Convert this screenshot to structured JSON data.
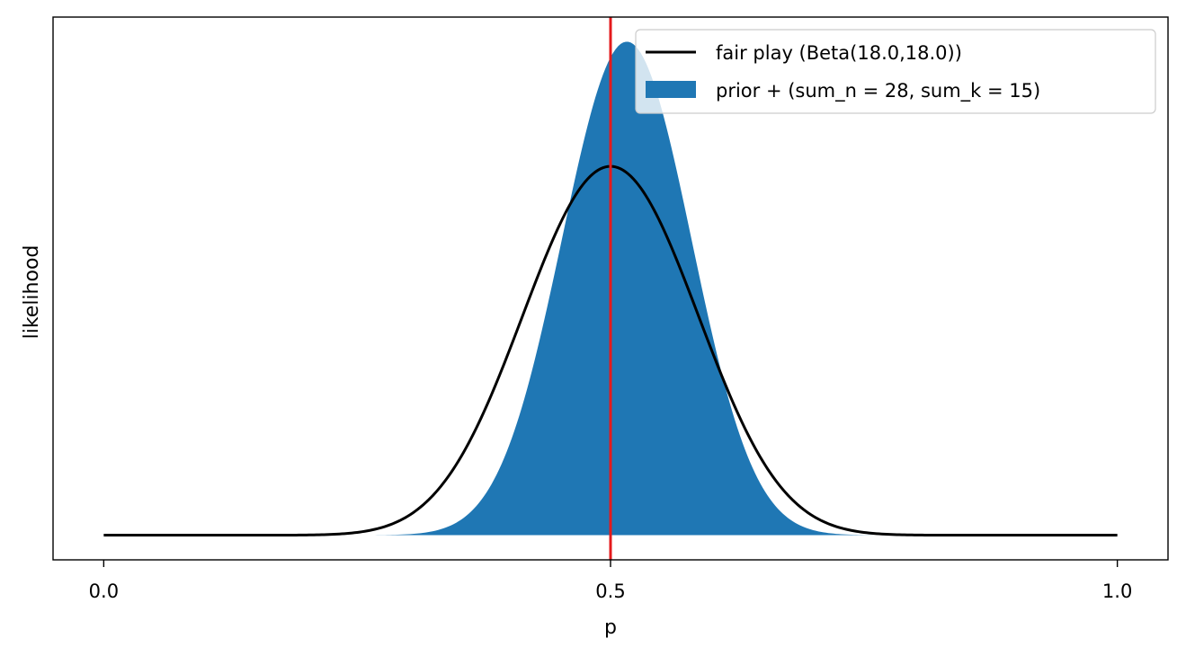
{
  "chart_data": {
    "type": "area",
    "title": "",
    "xlabel": "p",
    "ylabel": "likelihood",
    "xlim": [
      -0.05,
      1.05
    ],
    "ylim": [
      -0.05,
      1.05
    ],
    "xticks": [
      0.0,
      0.5,
      1.0
    ],
    "xtick_labels": [
      "0.0",
      "0.5",
      "1.0"
    ],
    "yticks_shown": false,
    "grid": false,
    "legend_position": "top-right",
    "series": [
      {
        "name": "fair play (Beta(18.0,18.0))",
        "kind": "line",
        "distribution": "beta",
        "alpha": 18.0,
        "beta": 18.0,
        "color": "#000000"
      },
      {
        "name": "prior + (sum_n = 28, sum_k = 15)",
        "kind": "filled-area",
        "distribution": "beta",
        "alpha": 33.0,
        "beta": 31.0,
        "color": "#1f77b4"
      }
    ],
    "reference_line": {
      "orientation": "vertical",
      "x": 0.5,
      "color": "#e41a1c"
    }
  }
}
